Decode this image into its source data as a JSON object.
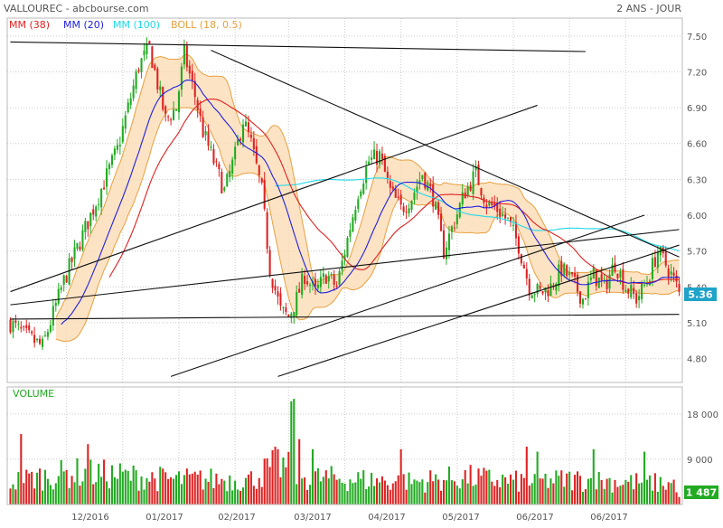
{
  "header": {
    "title": "VALLOUREC - abcbourse.com",
    "period": "2 ANS - JOUR"
  },
  "legend": [
    {
      "label": "MM (38)",
      "color": "#e02020"
    },
    {
      "label": "MM (20)",
      "color": "#2020e0"
    },
    {
      "label": "MM (100)",
      "color": "#20d8e8"
    },
    {
      "label": "BOLL (18, 0.5)",
      "color": "#e8a040"
    }
  ],
  "colors": {
    "up": "#22aa22",
    "down": "#dd2222",
    "band_fill": "#fbd9b0",
    "grid": "#cccccc",
    "price_badge": "#1fa3c9",
    "volume_badge": "#22aa22"
  },
  "chart_data": [
    {
      "type": "candlestick",
      "title": "",
      "ylim": [
        4.6,
        7.65
      ],
      "y_ticks": [
        "7.50",
        "7.20",
        "6.90",
        "6.60",
        "6.30",
        "6.00",
        "5.70",
        "5.40",
        "5.10",
        "4.80"
      ],
      "x_ticks": [
        "12/2016",
        "01/2017",
        "02/2017",
        "03/2017",
        "04/2017",
        "05/2017",
        "06/2017",
        "06/2017"
      ],
      "last_price": "5.36",
      "overlays": [
        "MM (38)",
        "MM (20)",
        "MM (100)",
        "BOLL (18, 0.5)"
      ],
      "price_path_anchors": [
        [
          0,
          5.1
        ],
        [
          5,
          5.0
        ],
        [
          12,
          4.9
        ],
        [
          20,
          5.45
        ],
        [
          30,
          6.0
        ],
        [
          40,
          6.55
        ],
        [
          48,
          7.25
        ],
        [
          52,
          7.4
        ],
        [
          55,
          7.1
        ],
        [
          58,
          6.8
        ],
        [
          62,
          6.9
        ],
        [
          65,
          7.35
        ],
        [
          69,
          7.0
        ],
        [
          72,
          6.7
        ],
        [
          76,
          6.45
        ],
        [
          80,
          6.2
        ],
        [
          84,
          6.5
        ],
        [
          87,
          6.8
        ],
        [
          90,
          6.6
        ],
        [
          94,
          6.2
        ],
        [
          97,
          5.55
        ],
        [
          101,
          5.2
        ],
        [
          104,
          5.15
        ],
        [
          107,
          5.3
        ],
        [
          110,
          5.5
        ],
        [
          114,
          5.35
        ],
        [
          118,
          5.5
        ],
        [
          122,
          5.4
        ],
        [
          126,
          5.8
        ],
        [
          130,
          6.2
        ],
        [
          134,
          6.45
        ],
        [
          138,
          6.5
        ],
        [
          142,
          6.2
        ],
        [
          146,
          6.05
        ],
        [
          150,
          6.15
        ],
        [
          154,
          6.35
        ],
        [
          158,
          6.15
        ],
        [
          162,
          5.7
        ],
        [
          166,
          5.95
        ],
        [
          170,
          6.2
        ],
        [
          174,
          6.35
        ],
        [
          178,
          6.1
        ],
        [
          182,
          6.05
        ],
        [
          186,
          5.95
        ],
        [
          190,
          5.75
        ],
        [
          194,
          5.4
        ],
        [
          198,
          5.35
        ],
        [
          202,
          5.4
        ],
        [
          206,
          5.55
        ],
        [
          210,
          5.45
        ],
        [
          214,
          5.3
        ],
        [
          218,
          5.5
        ],
        [
          222,
          5.4
        ],
        [
          226,
          5.6
        ],
        [
          230,
          5.4
        ],
        [
          234,
          5.3
        ],
        [
          238,
          5.45
        ],
        [
          242,
          5.7
        ],
        [
          246,
          5.55
        ],
        [
          250,
          5.36
        ]
      ],
      "trendlines": [
        {
          "from": [
            0,
            7.45
          ],
          "to": [
            215,
            7.37
          ]
        },
        {
          "from": [
            75,
            7.38
          ],
          "to": [
            250,
            5.65
          ]
        },
        {
          "from": [
            0,
            5.36
          ],
          "to": [
            197,
            6.92
          ]
        },
        {
          "from": [
            0,
            5.13
          ],
          "to": [
            250,
            5.17
          ]
        },
        {
          "from": [
            0,
            5.25
          ],
          "to": [
            250,
            5.88
          ]
        },
        {
          "from": [
            60,
            4.65
          ],
          "to": [
            237,
            6.0
          ]
        },
        {
          "from": [
            100,
            4.65
          ],
          "to": [
            250,
            5.75
          ]
        }
      ]
    },
    {
      "type": "bar",
      "title": "VOLUME",
      "ylim": [
        0,
        23000
      ],
      "y_ticks": [
        "18 000",
        "9 000"
      ],
      "last_volume": "1 487",
      "volume_anchors": [
        [
          0,
          5000
        ],
        [
          10,
          6000
        ],
        [
          25,
          7000
        ],
        [
          40,
          6500
        ],
        [
          60,
          5500
        ],
        [
          90,
          5500
        ],
        [
          100,
          9000
        ],
        [
          110,
          6000
        ],
        [
          130,
          5500
        ],
        [
          150,
          5000
        ],
        [
          170,
          6000
        ],
        [
          190,
          5000
        ],
        [
          210,
          5500
        ],
        [
          230,
          5000
        ],
        [
          250,
          4500
        ]
      ],
      "volume_spikes": [
        {
          "i": 4,
          "v": 14000
        },
        {
          "i": 29,
          "v": 12000
        },
        {
          "i": 105,
          "v": 20500
        },
        {
          "i": 106,
          "v": 21000
        },
        {
          "i": 108,
          "v": 13000
        },
        {
          "i": 113,
          "v": 11000
        },
        {
          "i": 146,
          "v": 11000
        },
        {
          "i": 193,
          "v": 11500
        },
        {
          "i": 197,
          "v": 10500
        },
        {
          "i": 218,
          "v": 11000
        },
        {
          "i": 237,
          "v": 10500
        }
      ]
    }
  ]
}
